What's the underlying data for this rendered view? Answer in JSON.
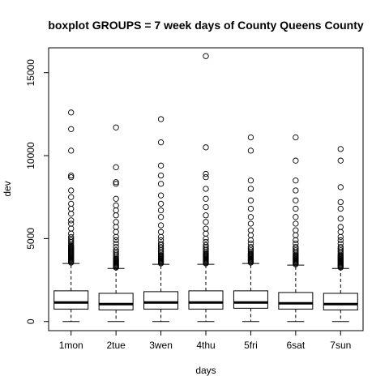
{
  "chart_data": {
    "type": "boxplot",
    "title": "boxplot GROUPS = 7 week days of County Queens County",
    "xlabel": "days",
    "ylabel": "dev",
    "categories": [
      "1mon",
      "2tue",
      "3wen",
      "4thu",
      "5fri",
      "6sat",
      "7sun"
    ],
    "ylim": [
      -550,
      16500
    ],
    "yticks": [
      0,
      5000,
      10000,
      15000
    ],
    "grid": false,
    "legend": "none",
    "boxes": [
      {
        "name": "1mon",
        "min": 0,
        "q1": 750,
        "median": 1150,
        "q3": 1850,
        "whisker_high": 3500,
        "outliers": [
          3550,
          3600,
          3650,
          3700,
          3750,
          3800,
          3850,
          3900,
          3950,
          4000,
          4050,
          4100,
          4150,
          4200,
          4250,
          4300,
          4350,
          4400,
          4450,
          4500,
          4550,
          4600,
          4700,
          4800,
          4900,
          5000,
          5100,
          5300,
          5600,
          5900,
          6100,
          6500,
          6800,
          7100,
          7500,
          7900,
          8700,
          8800,
          10300,
          11600,
          12600
        ]
      },
      {
        "name": "2tue",
        "min": 0,
        "q1": 700,
        "median": 1050,
        "q3": 1700,
        "whisker_high": 3200,
        "outliers": [
          3250,
          3300,
          3350,
          3400,
          3450,
          3500,
          3550,
          3600,
          3650,
          3700,
          3750,
          3800,
          3900,
          4000,
          4100,
          4200,
          4300,
          4500,
          4700,
          4900,
          5100,
          5400,
          5700,
          6000,
          6400,
          6700,
          7000,
          7400,
          8300,
          8400,
          9300,
          11700
        ]
      },
      {
        "name": "3wen",
        "min": 0,
        "q1": 750,
        "median": 1150,
        "q3": 1800,
        "whisker_high": 3450,
        "outliers": [
          3500,
          3550,
          3600,
          3650,
          3700,
          3750,
          3800,
          3850,
          3900,
          3950,
          4000,
          4100,
          4200,
          4300,
          4400,
          4500,
          4600,
          4700,
          4900,
          5100,
          5400,
          5800,
          6300,
          6700,
          7100,
          7600,
          8300,
          8800,
          9400,
          10800,
          12200
        ]
      },
      {
        "name": "4thu",
        "min": 0,
        "q1": 750,
        "median": 1150,
        "q3": 1850,
        "whisker_high": 3450,
        "outliers": [
          3500,
          3550,
          3600,
          3650,
          3700,
          3750,
          3800,
          3850,
          3900,
          3950,
          4000,
          4050,
          4100,
          4200,
          4300,
          4400,
          4500,
          4600,
          4800,
          5000,
          5300,
          5600,
          6000,
          6400,
          6900,
          7400,
          8000,
          8700,
          8900,
          10500,
          16000
        ]
      },
      {
        "name": "5fri",
        "min": 0,
        "q1": 800,
        "median": 1150,
        "q3": 1850,
        "whisker_high": 3500,
        "outliers": [
          3550,
          3600,
          3650,
          3700,
          3750,
          3800,
          3850,
          3900,
          3950,
          4000,
          4050,
          4100,
          4200,
          4300,
          4400,
          4500,
          4700,
          4900,
          5200,
          5500,
          5900,
          6300,
          6800,
          7300,
          8000,
          8500,
          10300,
          11100
        ]
      },
      {
        "name": "6sat",
        "min": 0,
        "q1": 750,
        "median": 1100,
        "q3": 1750,
        "whisker_high": 3400,
        "outliers": [
          3450,
          3500,
          3550,
          3600,
          3650,
          3700,
          3750,
          3800,
          3850,
          3900,
          3950,
          4000,
          4100,
          4200,
          4300,
          4400,
          4500,
          4700,
          4900,
          5200,
          5500,
          5900,
          6300,
          6800,
          7300,
          7900,
          8500,
          9700,
          11100
        ]
      },
      {
        "name": "7sun",
        "min": 0,
        "q1": 700,
        "median": 1050,
        "q3": 1700,
        "whisker_high": 3200,
        "outliers": [
          3250,
          3300,
          3350,
          3400,
          3450,
          3500,
          3550,
          3600,
          3650,
          3700,
          3750,
          3800,
          3850,
          3900,
          3950,
          4000,
          4100,
          4200,
          4300,
          4400,
          4500,
          4700,
          4900,
          5100,
          5400,
          5700,
          6200,
          6800,
          7200,
          8100,
          9700,
          10400
        ]
      }
    ]
  }
}
